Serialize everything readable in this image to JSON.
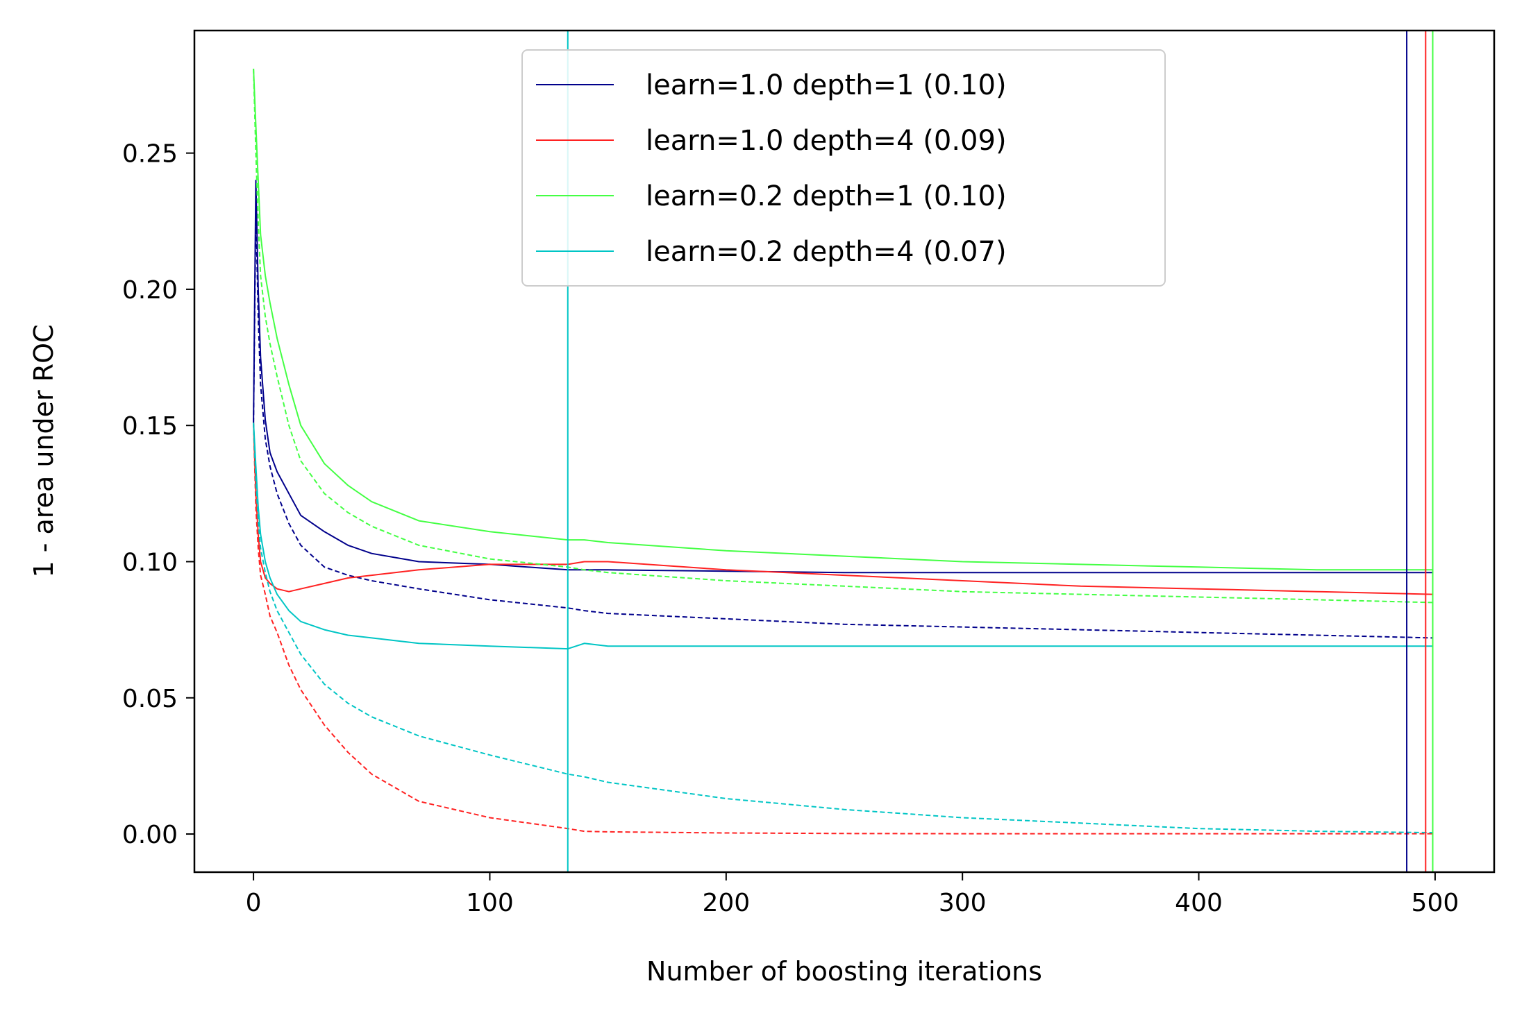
{
  "chart_data": {
    "type": "line",
    "title": "",
    "xlabel": "Number of boosting iterations",
    "ylabel": "1 - area under ROC",
    "xlim": [
      -25,
      525
    ],
    "ylim": [
      -0.014,
      0.295
    ],
    "xticks": [
      0,
      100,
      200,
      300,
      400,
      500
    ],
    "xtick_labels": [
      "0",
      "100",
      "200",
      "300",
      "400",
      "500"
    ],
    "yticks": [
      0.0,
      0.05,
      0.1,
      0.15,
      0.2,
      0.25
    ],
    "ytick_labels": [
      "0.00",
      "0.05",
      "0.10",
      "0.15",
      "0.20",
      "0.25"
    ],
    "grid": false,
    "legend_position": "top-center",
    "x": [
      0,
      1,
      2,
      3,
      5,
      7,
      10,
      15,
      20,
      30,
      40,
      50,
      70,
      100,
      133,
      140,
      150,
      200,
      250,
      300,
      350,
      400,
      450,
      499
    ],
    "series": [
      {
        "name": "learn=1.0 depth=1 (0.10)",
        "color": "#00008b",
        "style": "solid",
        "values": [
          0.151,
          0.24,
          0.2,
          0.175,
          0.152,
          0.14,
          0.133,
          0.125,
          0.117,
          0.111,
          0.106,
          0.103,
          0.1,
          0.099,
          0.097,
          0.097,
          0.097,
          0.0965,
          0.096,
          0.096,
          0.096,
          0.096,
          0.096,
          0.096
        ]
      },
      {
        "name": "learn=1.0 depth=1 (0.10) test",
        "color": "#00008b",
        "style": "dashed",
        "values": [
          0.151,
          0.23,
          0.19,
          0.165,
          0.145,
          0.135,
          0.125,
          0.114,
          0.106,
          0.098,
          0.095,
          0.093,
          0.09,
          0.086,
          0.083,
          0.082,
          0.081,
          0.079,
          0.077,
          0.076,
          0.075,
          0.074,
          0.073,
          0.072
        ]
      },
      {
        "name": "learn=1.0 depth=4 (0.09)",
        "color": "#ff2222",
        "style": "solid",
        "values": [
          0.151,
          0.125,
          0.11,
          0.1,
          0.094,
          0.092,
          0.09,
          0.089,
          0.09,
          0.092,
          0.094,
          0.095,
          0.097,
          0.099,
          0.099,
          0.1,
          0.1,
          0.097,
          0.095,
          0.093,
          0.091,
          0.09,
          0.089,
          0.088
        ]
      },
      {
        "name": "learn=1.0 depth=4 (0.09) test",
        "color": "#ff2222",
        "style": "dashed",
        "values": [
          0.151,
          0.12,
          0.105,
          0.095,
          0.088,
          0.08,
          0.074,
          0.062,
          0.053,
          0.04,
          0.03,
          0.022,
          0.012,
          0.006,
          0.002,
          0.001,
          0.0008,
          0.0004,
          0.0002,
          0.0001,
          0.0001,
          0.0001,
          0.0001,
          0.0001
        ]
      },
      {
        "name": "learn=0.2 depth=1 (0.10)",
        "color": "#44ff44",
        "style": "solid",
        "values": [
          0.281,
          0.26,
          0.24,
          0.22,
          0.205,
          0.195,
          0.182,
          0.165,
          0.15,
          0.136,
          0.128,
          0.122,
          0.115,
          0.111,
          0.108,
          0.108,
          0.107,
          0.104,
          0.102,
          0.1,
          0.099,
          0.098,
          0.097,
          0.097
        ]
      },
      {
        "name": "learn=0.2 depth=1 (0.10) test",
        "color": "#44ff44",
        "style": "dashed",
        "values": [
          0.281,
          0.25,
          0.225,
          0.205,
          0.19,
          0.18,
          0.168,
          0.15,
          0.137,
          0.125,
          0.118,
          0.113,
          0.106,
          0.101,
          0.098,
          0.097,
          0.096,
          0.093,
          0.091,
          0.089,
          0.088,
          0.087,
          0.086,
          0.085
        ]
      },
      {
        "name": "learn=0.2 depth=4 (0.07)",
        "color": "#00c5c5",
        "style": "solid",
        "values": [
          0.151,
          0.135,
          0.12,
          0.11,
          0.1,
          0.094,
          0.088,
          0.082,
          0.078,
          0.075,
          0.073,
          0.072,
          0.07,
          0.069,
          0.068,
          0.07,
          0.069,
          0.069,
          0.069,
          0.069,
          0.069,
          0.069,
          0.069,
          0.069
        ]
      },
      {
        "name": "learn=0.2 depth=4 (0.07) test",
        "color": "#00c5c5",
        "style": "dashed",
        "values": [
          0.151,
          0.13,
          0.115,
          0.105,
          0.096,
          0.089,
          0.082,
          0.074,
          0.066,
          0.055,
          0.048,
          0.043,
          0.036,
          0.029,
          0.022,
          0.021,
          0.019,
          0.013,
          0.009,
          0.006,
          0.004,
          0.002,
          0.001,
          0.0005
        ]
      }
    ],
    "vlines": [
      {
        "x": 133,
        "color": "#00c5c5"
      },
      {
        "x": 488,
        "color": "#00008b"
      },
      {
        "x": 496,
        "color": "#ff2222"
      },
      {
        "x": 499,
        "color": "#44ff44"
      }
    ],
    "legend": [
      {
        "label": "learn=1.0 depth=1 (0.10)",
        "color": "#00008b"
      },
      {
        "label": "learn=1.0 depth=4 (0.09)",
        "color": "#ff2222"
      },
      {
        "label": "learn=0.2 depth=1 (0.10)",
        "color": "#44ff44"
      },
      {
        "label": "learn=0.2 depth=4 (0.07)",
        "color": "#00c5c5"
      }
    ]
  }
}
